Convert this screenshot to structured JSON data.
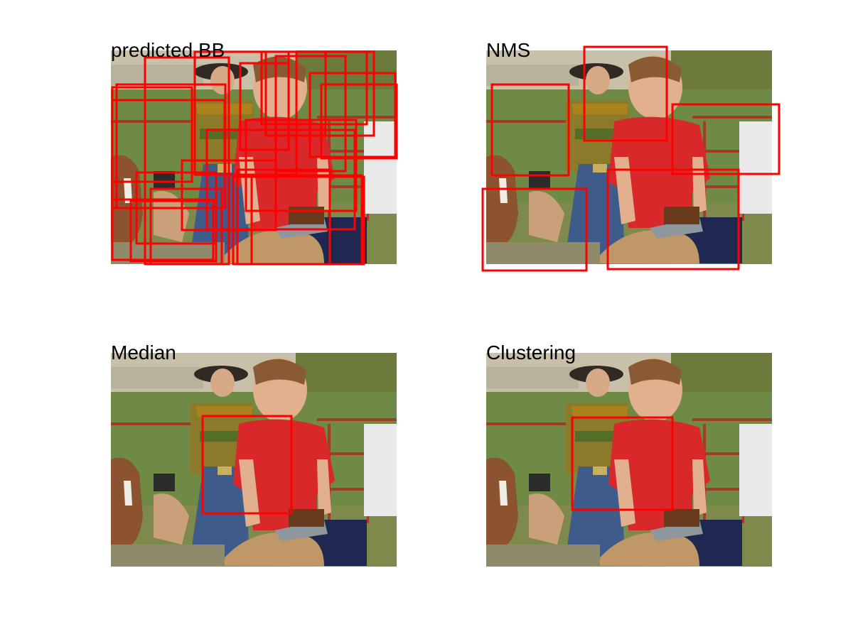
{
  "panels": [
    {
      "title": "predicted BB",
      "box_color": "#ff0000",
      "box_count": 22
    },
    {
      "title": "NMS",
      "box_color": "#ff0000",
      "box_count": 5
    },
    {
      "title": "Median",
      "box_color": "#ff0000",
      "box_count": 1
    },
    {
      "title": "Clustering",
      "box_color": "#ff0000",
      "box_count": 1
    }
  ]
}
